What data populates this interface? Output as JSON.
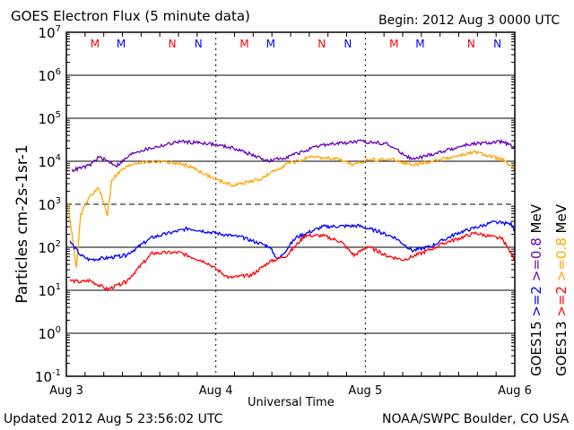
{
  "header": {
    "title": "GOES Electron Flux (5 minute data)",
    "begin": "Begin: 2012 Aug 3 0000 UTC"
  },
  "footer": {
    "updated": "Updated 2012 Aug  5 23:56:02 UTC",
    "source": "NOAA/SWPC Boulder, CO USA"
  },
  "chart_data": {
    "type": "line",
    "title": "GOES Electron Flux (5 minute data)",
    "xlabel": "Universal Time",
    "ylabel": "Particles cm-2s-1sr-1",
    "y_scale": "log10",
    "ylim_log10": [
      -1,
      7
    ],
    "xlim_hours": [
      0,
      72
    ],
    "x_ticks": [
      {
        "h": 0,
        "label": "Aug 3"
      },
      {
        "h": 24,
        "label": "Aug 4"
      },
      {
        "h": 48,
        "label": "Aug 5"
      },
      {
        "h": 72,
        "label": "Aug 6"
      }
    ],
    "y_ticks": [
      {
        "e": 7,
        "base": "10",
        "exp": "7"
      },
      {
        "e": 6,
        "base": "10",
        "exp": "6"
      },
      {
        "e": 5,
        "base": "10",
        "exp": "5"
      },
      {
        "e": 4,
        "base": "10",
        "exp": "4"
      },
      {
        "e": 3,
        "base": "10",
        "exp": "3"
      },
      {
        "e": 2,
        "base": "10",
        "exp": "2"
      },
      {
        "e": 1,
        "base": "10",
        "exp": "1"
      },
      {
        "e": 0,
        "base": "10",
        "exp": "0"
      },
      {
        "e": -1,
        "base": "10",
        "exp": "-1"
      }
    ],
    "threshold_log10": 3,
    "markers": [
      {
        "h": 4.6,
        "label": "M",
        "color": "#ff0000"
      },
      {
        "h": 8.8,
        "label": "M",
        "color": "#0000ff"
      },
      {
        "h": 17.0,
        "label": "N",
        "color": "#ff0000"
      },
      {
        "h": 21.2,
        "label": "N",
        "color": "#0000ff"
      },
      {
        "h": 28.6,
        "label": "M",
        "color": "#ff0000"
      },
      {
        "h": 32.8,
        "label": "M",
        "color": "#0000ff"
      },
      {
        "h": 41.0,
        "label": "N",
        "color": "#ff0000"
      },
      {
        "h": 45.2,
        "label": "N",
        "color": "#0000ff"
      },
      {
        "h": 52.6,
        "label": "M",
        "color": "#ff0000"
      },
      {
        "h": 56.8,
        "label": "M",
        "color": "#0000ff"
      },
      {
        "h": 65.0,
        "label": "N",
        "color": "#ff0000"
      },
      {
        "h": 69.2,
        "label": "N",
        "color": "#0000ff"
      }
    ],
    "legend": {
      "col1": {
        "sat": "GOES15",
        "e2": ">=2",
        "e08": ">=0.8",
        "unit": "MeV"
      },
      "col2": {
        "sat": "GOES13",
        "e2": ">=2",
        "e08": ">=0.8",
        "unit": "MeV"
      }
    },
    "series": [
      {
        "name": "GOES15 >=0.8 MeV",
        "color": "#6600bb",
        "points": [
          [
            0.9,
            3.79
          ],
          [
            3.7,
            3.9
          ],
          [
            5.2,
            4.1
          ],
          [
            8.1,
            3.9
          ],
          [
            10.9,
            4.21
          ],
          [
            18.1,
            4.46
          ],
          [
            22.5,
            4.42
          ],
          [
            26.8,
            4.31
          ],
          [
            32.5,
            4.0
          ],
          [
            35.4,
            4.1
          ],
          [
            41.2,
            4.38
          ],
          [
            46.9,
            4.46
          ],
          [
            51.3,
            4.42
          ],
          [
            55.6,
            4.04
          ],
          [
            59.9,
            4.21
          ],
          [
            64.2,
            4.38
          ],
          [
            70.0,
            4.46
          ],
          [
            72,
            4.31
          ]
        ]
      },
      {
        "name": "GOES13 >=0.8 MeV",
        "color": "#ffa500",
        "points": [
          [
            0.3,
            3.0
          ],
          [
            1.6,
            1.5
          ],
          [
            2.3,
            2.75
          ],
          [
            3.7,
            3.17
          ],
          [
            5.2,
            3.38
          ],
          [
            6.6,
            2.75
          ],
          [
            7.3,
            3.58
          ],
          [
            8.8,
            3.79
          ],
          [
            10.9,
            3.96
          ],
          [
            15.3,
            4.0
          ],
          [
            19.6,
            3.9
          ],
          [
            23.9,
            3.58
          ],
          [
            26.8,
            3.44
          ],
          [
            31.1,
            3.58
          ],
          [
            35.4,
            3.94
          ],
          [
            39.7,
            4.1
          ],
          [
            44.1,
            4.04
          ],
          [
            46.2,
            3.9
          ],
          [
            48.4,
            4.04
          ],
          [
            52.7,
            4.04
          ],
          [
            55.6,
            3.9
          ],
          [
            59.9,
            4.04
          ],
          [
            65.7,
            4.21
          ],
          [
            70.0,
            4.04
          ],
          [
            72,
            3.79
          ]
        ]
      },
      {
        "name": "GOES15 >=2 MeV",
        "color": "#0000ff",
        "points": [
          [
            0.6,
            2.13
          ],
          [
            2.3,
            1.81
          ],
          [
            3.7,
            1.71
          ],
          [
            6.6,
            1.75
          ],
          [
            9.5,
            1.81
          ],
          [
            13.8,
            2.23
          ],
          [
            19.6,
            2.44
          ],
          [
            23.9,
            2.33
          ],
          [
            28.2,
            2.23
          ],
          [
            32.5,
            2.02
          ],
          [
            34.0,
            1.71
          ],
          [
            36.9,
            2.23
          ],
          [
            41.2,
            2.48
          ],
          [
            46.9,
            2.5
          ],
          [
            49.8,
            2.38
          ],
          [
            52.7,
            2.23
          ],
          [
            55.6,
            1.92
          ],
          [
            58.5,
            2.02
          ],
          [
            62.8,
            2.33
          ],
          [
            68.5,
            2.58
          ],
          [
            71.4,
            2.54
          ],
          [
            72,
            2.38
          ]
        ]
      },
      {
        "name": "GOES13 >=2 MeV",
        "color": "#ff0000",
        "points": [
          [
            0.6,
            1.23
          ],
          [
            2.3,
            1.19
          ],
          [
            3.7,
            1.23
          ],
          [
            6.6,
            1.02
          ],
          [
            9.5,
            1.19
          ],
          [
            13.8,
            1.86
          ],
          [
            18.1,
            1.88
          ],
          [
            22.5,
            1.65
          ],
          [
            26.1,
            1.29
          ],
          [
            29.7,
            1.35
          ],
          [
            32.5,
            1.65
          ],
          [
            35.4,
            1.81
          ],
          [
            38.3,
            2.27
          ],
          [
            41.2,
            2.27
          ],
          [
            44.1,
            2.13
          ],
          [
            46.2,
            1.81
          ],
          [
            48.4,
            2.02
          ],
          [
            51.3,
            1.81
          ],
          [
            54.1,
            1.71
          ],
          [
            57.0,
            1.86
          ],
          [
            61.3,
            2.13
          ],
          [
            65.7,
            2.33
          ],
          [
            70.0,
            2.19
          ],
          [
            72,
            1.71
          ]
        ]
      }
    ]
  }
}
